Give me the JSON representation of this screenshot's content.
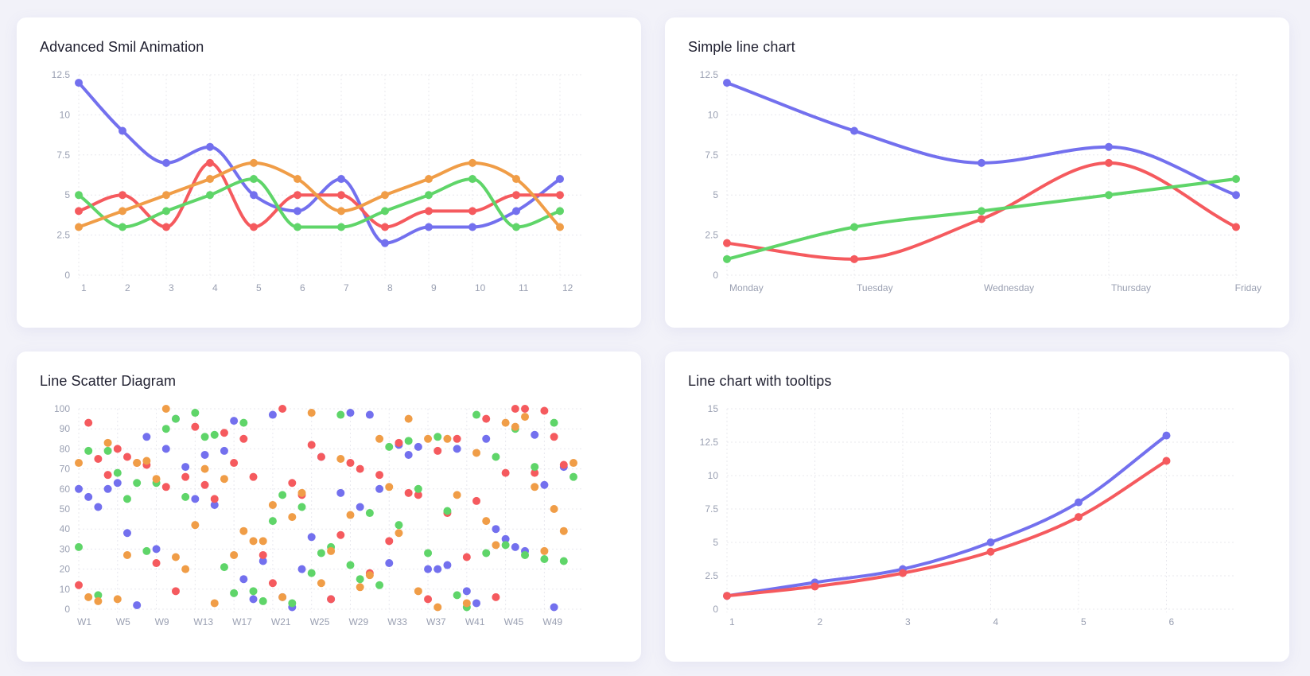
{
  "colors": {
    "blue": "#7370ee",
    "red": "#f55a5e",
    "green": "#5fd569",
    "orange": "#f09d47",
    "grid": "#e8e8ee",
    "tick": "#9aa0b2"
  },
  "cards": [
    {
      "title": "Advanced Smil Animation"
    },
    {
      "title": "Simple line chart"
    },
    {
      "title": "Line Scatter Diagram"
    },
    {
      "title": "Line chart with tooltips"
    }
  ],
  "chart_data": [
    {
      "type": "line",
      "title": "Advanced Smil Animation",
      "categories": [
        "1",
        "2",
        "3",
        "4",
        "5",
        "6",
        "7",
        "8",
        "9",
        "10",
        "11",
        "12"
      ],
      "y_ticks": [
        "0",
        "2.5",
        "5",
        "7.5",
        "10",
        "12.5"
      ],
      "ylim": [
        0,
        12.5
      ],
      "grid": true,
      "series": [
        {
          "color": "blue",
          "values": [
            12,
            9,
            7,
            8,
            5,
            4,
            6,
            2,
            3,
            3,
            4,
            6
          ]
        },
        {
          "color": "red",
          "values": [
            4,
            5,
            3,
            7,
            3,
            5,
            5,
            3,
            4,
            4,
            5,
            5
          ]
        },
        {
          "color": "green",
          "values": [
            5,
            3,
            4,
            5,
            6,
            3,
            3,
            4,
            5,
            6,
            3,
            4
          ]
        },
        {
          "color": "orange",
          "values": [
            3,
            4,
            5,
            6,
            7,
            6,
            4,
            5,
            6,
            7,
            6,
            3
          ]
        }
      ]
    },
    {
      "type": "line",
      "title": "Simple line chart",
      "categories": [
        "Monday",
        "Tuesday",
        "Wednesday",
        "Thursday",
        "Friday"
      ],
      "y_ticks": [
        "0",
        "2.5",
        "5",
        "7.5",
        "10",
        "12.5"
      ],
      "ylim": [
        0,
        12.5
      ],
      "grid": true,
      "series": [
        {
          "color": "blue",
          "values": [
            12,
            9,
            7,
            8,
            5
          ]
        },
        {
          "color": "red",
          "values": [
            2,
            1,
            3.5,
            7,
            3
          ]
        },
        {
          "color": "green",
          "values": [
            1,
            3,
            4,
            5,
            6
          ]
        }
      ]
    },
    {
      "type": "scatter",
      "title": "Line Scatter Diagram",
      "x_ticks": [
        "W1",
        "W5",
        "W9",
        "W13",
        "W17",
        "W21",
        "W25",
        "W29",
        "W33",
        "W37",
        "W41",
        "W45",
        "W49"
      ],
      "y_ticks": [
        "0",
        "10",
        "20",
        "30",
        "40",
        "50",
        "60",
        "70",
        "80",
        "90",
        "100"
      ],
      "ylim": [
        0,
        100
      ],
      "xlim": [
        1,
        52
      ],
      "grid": true,
      "series": [
        {
          "color": "blue",
          "points": [
            [
              1,
              60
            ],
            [
              2,
              56
            ],
            [
              3,
              51
            ],
            [
              4,
              60
            ],
            [
              5,
              63
            ],
            [
              6,
              38
            ],
            [
              7,
              2
            ],
            [
              8,
              86
            ],
            [
              9,
              30
            ],
            [
              10,
              80
            ],
            [
              11,
              95
            ],
            [
              12,
              71
            ],
            [
              13,
              55
            ],
            [
              14,
              77
            ],
            [
              15,
              52
            ],
            [
              16,
              79
            ],
            [
              17,
              94
            ],
            [
              18,
              15
            ],
            [
              19,
              5
            ],
            [
              20,
              24
            ],
            [
              21,
              97
            ],
            [
              22,
              6
            ],
            [
              23,
              1
            ],
            [
              24,
              20
            ],
            [
              25,
              36
            ],
            [
              26,
              76
            ],
            [
              27,
              5
            ],
            [
              28,
              58
            ],
            [
              29,
              98
            ],
            [
              30,
              51
            ],
            [
              31,
              97
            ],
            [
              32,
              60
            ],
            [
              33,
              23
            ],
            [
              34,
              82
            ],
            [
              35,
              77
            ],
            [
              36,
              81
            ],
            [
              37,
              20
            ],
            [
              38,
              20
            ],
            [
              39,
              22
            ],
            [
              40,
              80
            ],
            [
              41,
              9
            ],
            [
              42,
              3
            ],
            [
              43,
              85
            ],
            [
              44,
              40
            ],
            [
              45,
              35
            ],
            [
              46,
              31
            ],
            [
              47,
              29
            ],
            [
              48,
              87
            ],
            [
              49,
              62
            ],
            [
              50,
              1
            ],
            [
              51,
              71
            ]
          ]
        },
        {
          "color": "red",
          "points": [
            [
              1,
              12
            ],
            [
              2,
              93
            ],
            [
              3,
              75
            ],
            [
              4,
              67
            ],
            [
              5,
              80
            ],
            [
              6,
              76
            ],
            [
              7,
              73
            ],
            [
              8,
              72
            ],
            [
              9,
              23
            ],
            [
              10,
              61
            ],
            [
              11,
              9
            ],
            [
              12,
              66
            ],
            [
              13,
              91
            ],
            [
              14,
              62
            ],
            [
              15,
              55
            ],
            [
              16,
              88
            ],
            [
              17,
              73
            ],
            [
              18,
              85
            ],
            [
              19,
              66
            ],
            [
              20,
              27
            ],
            [
              21,
              13
            ],
            [
              22,
              100
            ],
            [
              23,
              63
            ],
            [
              24,
              57
            ],
            [
              25,
              82
            ],
            [
              26,
              76
            ],
            [
              27,
              5
            ],
            [
              28,
              37
            ],
            [
              29,
              73
            ],
            [
              30,
              70
            ],
            [
              31,
              18
            ],
            [
              32,
              67
            ],
            [
              33,
              34
            ],
            [
              34,
              83
            ],
            [
              35,
              58
            ],
            [
              36,
              57
            ],
            [
              37,
              5
            ],
            [
              38,
              79
            ],
            [
              39,
              48
            ],
            [
              40,
              85
            ],
            [
              41,
              26
            ],
            [
              42,
              54
            ],
            [
              43,
              95
            ],
            [
              44,
              6
            ],
            [
              45,
              68
            ],
            [
              46,
              100
            ],
            [
              47,
              100
            ],
            [
              48,
              68
            ],
            [
              49,
              99
            ],
            [
              50,
              86
            ],
            [
              51,
              72
            ]
          ]
        },
        {
          "color": "green",
          "points": [
            [
              1,
              31
            ],
            [
              2,
              79
            ],
            [
              3,
              7
            ],
            [
              4,
              79
            ],
            [
              5,
              68
            ],
            [
              6,
              55
            ],
            [
              7,
              63
            ],
            [
              8,
              29
            ],
            [
              9,
              63
            ],
            [
              10,
              90
            ],
            [
              11,
              95
            ],
            [
              12,
              56
            ],
            [
              13,
              98
            ],
            [
              14,
              86
            ],
            [
              15,
              87
            ],
            [
              16,
              21
            ],
            [
              17,
              8
            ],
            [
              18,
              93
            ],
            [
              19,
              9
            ],
            [
              20,
              4
            ],
            [
              21,
              44
            ],
            [
              22,
              57
            ],
            [
              23,
              3
            ],
            [
              24,
              51
            ],
            [
              25,
              18
            ],
            [
              26,
              28
            ],
            [
              27,
              31
            ],
            [
              28,
              97
            ],
            [
              29,
              22
            ],
            [
              30,
              15
            ],
            [
              31,
              48
            ],
            [
              32,
              12
            ],
            [
              33,
              81
            ],
            [
              34,
              42
            ],
            [
              35,
              84
            ],
            [
              36,
              60
            ],
            [
              37,
              28
            ],
            [
              38,
              86
            ],
            [
              39,
              49
            ],
            [
              40,
              7
            ],
            [
              41,
              1
            ],
            [
              42,
              97
            ],
            [
              43,
              28
            ],
            [
              44,
              76
            ],
            [
              45,
              32
            ],
            [
              46,
              90
            ],
            [
              47,
              27
            ],
            [
              48,
              71
            ],
            [
              49,
              25
            ],
            [
              50,
              93
            ],
            [
              51,
              24
            ],
            [
              52,
              66
            ]
          ]
        },
        {
          "color": "orange",
          "points": [
            [
              1,
              73
            ],
            [
              2,
              6
            ],
            [
              3,
              4
            ],
            [
              4,
              83
            ],
            [
              5,
              5
            ],
            [
              6,
              27
            ],
            [
              7,
              73
            ],
            [
              8,
              74
            ],
            [
              9,
              65
            ],
            [
              10,
              100
            ],
            [
              11,
              26
            ],
            [
              12,
              20
            ],
            [
              13,
              42
            ],
            [
              14,
              70
            ],
            [
              15,
              3
            ],
            [
              16,
              65
            ],
            [
              17,
              27
            ],
            [
              18,
              39
            ],
            [
              19,
              34
            ],
            [
              20,
              34
            ],
            [
              21,
              52
            ],
            [
              22,
              6
            ],
            [
              23,
              46
            ],
            [
              24,
              58
            ],
            [
              25,
              98
            ],
            [
              26,
              13
            ],
            [
              27,
              29
            ],
            [
              28,
              75
            ],
            [
              29,
              47
            ],
            [
              30,
              11
            ],
            [
              31,
              17
            ],
            [
              32,
              85
            ],
            [
              33,
              61
            ],
            [
              34,
              38
            ],
            [
              35,
              95
            ],
            [
              36,
              9
            ],
            [
              37,
              85
            ],
            [
              38,
              1
            ],
            [
              39,
              85
            ],
            [
              40,
              57
            ],
            [
              41,
              3
            ],
            [
              42,
              78
            ],
            [
              43,
              44
            ],
            [
              44,
              32
            ],
            [
              45,
              93
            ],
            [
              46,
              91
            ],
            [
              47,
              96
            ],
            [
              48,
              61
            ],
            [
              49,
              29
            ],
            [
              50,
              50
            ],
            [
              51,
              39
            ],
            [
              52,
              73
            ]
          ]
        }
      ]
    },
    {
      "type": "line",
      "title": "Line chart with tooltips",
      "categories": [
        "1",
        "2",
        "3",
        "4",
        "5",
        "6"
      ],
      "y_ticks": [
        "0",
        "2.5",
        "5",
        "7.5",
        "10",
        "12.5",
        "15"
      ],
      "ylim": [
        0,
        15
      ],
      "grid": true,
      "series": [
        {
          "color": "blue",
          "values": [
            1,
            2,
            3,
            5,
            8,
            13
          ]
        },
        {
          "color": "red",
          "values": [
            1,
            1.7,
            2.7,
            4.3,
            6.9,
            11.1
          ]
        }
      ]
    }
  ]
}
